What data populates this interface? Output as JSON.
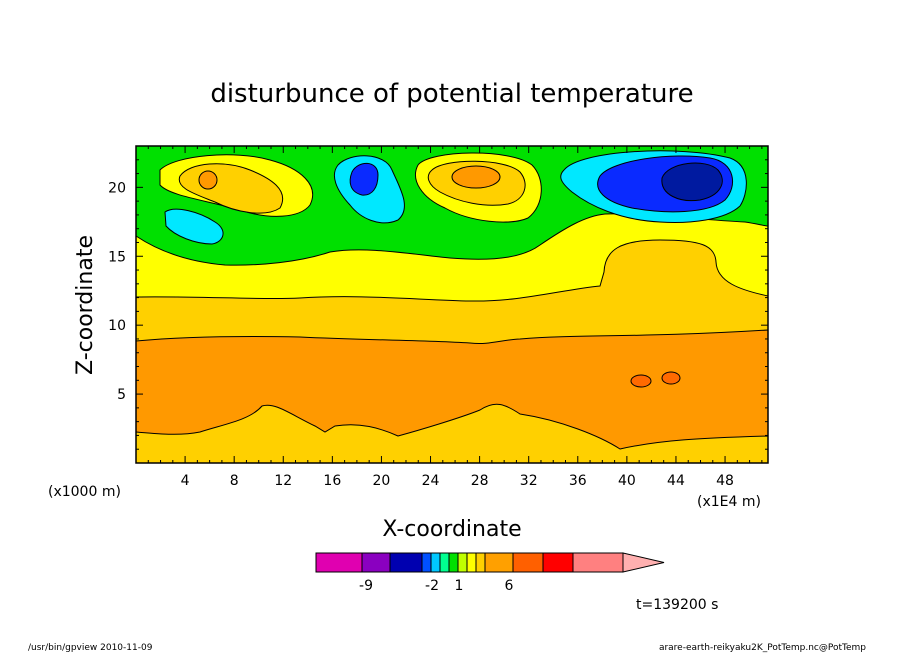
{
  "chart_data": {
    "type": "heatmap",
    "title": "disturbunce of potential temperature",
    "xlabel": "X-coordinate",
    "ylabel": "Z-coordinate",
    "x_unit_left": "(x1000 m)",
    "x_unit_right": "(x1E4 m)",
    "xlim": [
      0,
      51.5
    ],
    "ylim": [
      0,
      23
    ],
    "x_ticks": [
      "4",
      "8",
      "12",
      "16",
      "20",
      "24",
      "28",
      "32",
      "36",
      "40",
      "44",
      "48"
    ],
    "y_ticks": [
      "5",
      "10",
      "15",
      "20"
    ],
    "time_label": "t=139200 s",
    "colorbar_labels": [
      "-9",
      "-2",
      "1",
      "6"
    ],
    "colorbar_colors": [
      "#e000b0",
      "#8a00c0",
      "#0000b0",
      "#0050ff",
      "#00c8ff",
      "#00ff90",
      "#00e000",
      "#c0ff00",
      "#ffff00",
      "#ffd000",
      "#ffa000",
      "#ff6000",
      "#ff0000",
      "#ff8080",
      "#ffb0b0"
    ],
    "levels": {
      "dark_blue": "#001aa0",
      "blue": "#0a2aff",
      "cyan": "#00e8ff",
      "green": "#00e000",
      "yellow": "#ffff00",
      "light_orange": "#ffd000",
      "orange": "#ff9900",
      "dark_orange": "#ff6a00"
    }
  },
  "footer": {
    "left": "/usr/bin/gpview   2010-11-09",
    "right": "arare-earth-reikyaku2K_PotTemp.nc@PotTemp"
  }
}
